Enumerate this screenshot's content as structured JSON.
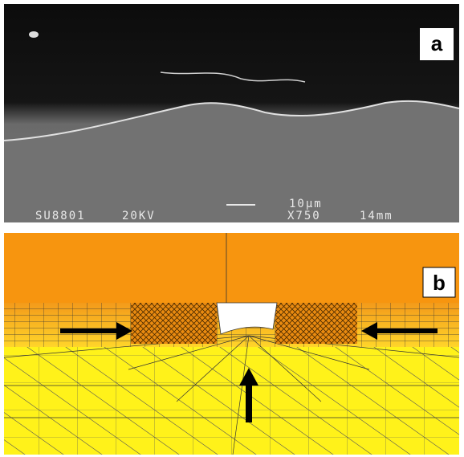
{
  "panels": [
    {
      "label": "a",
      "scale_bar": "10µm",
      "info": [
        "SU8801",
        "20KV",
        "X750",
        "14mm"
      ]
    },
    {
      "label": "b"
    }
  ]
}
